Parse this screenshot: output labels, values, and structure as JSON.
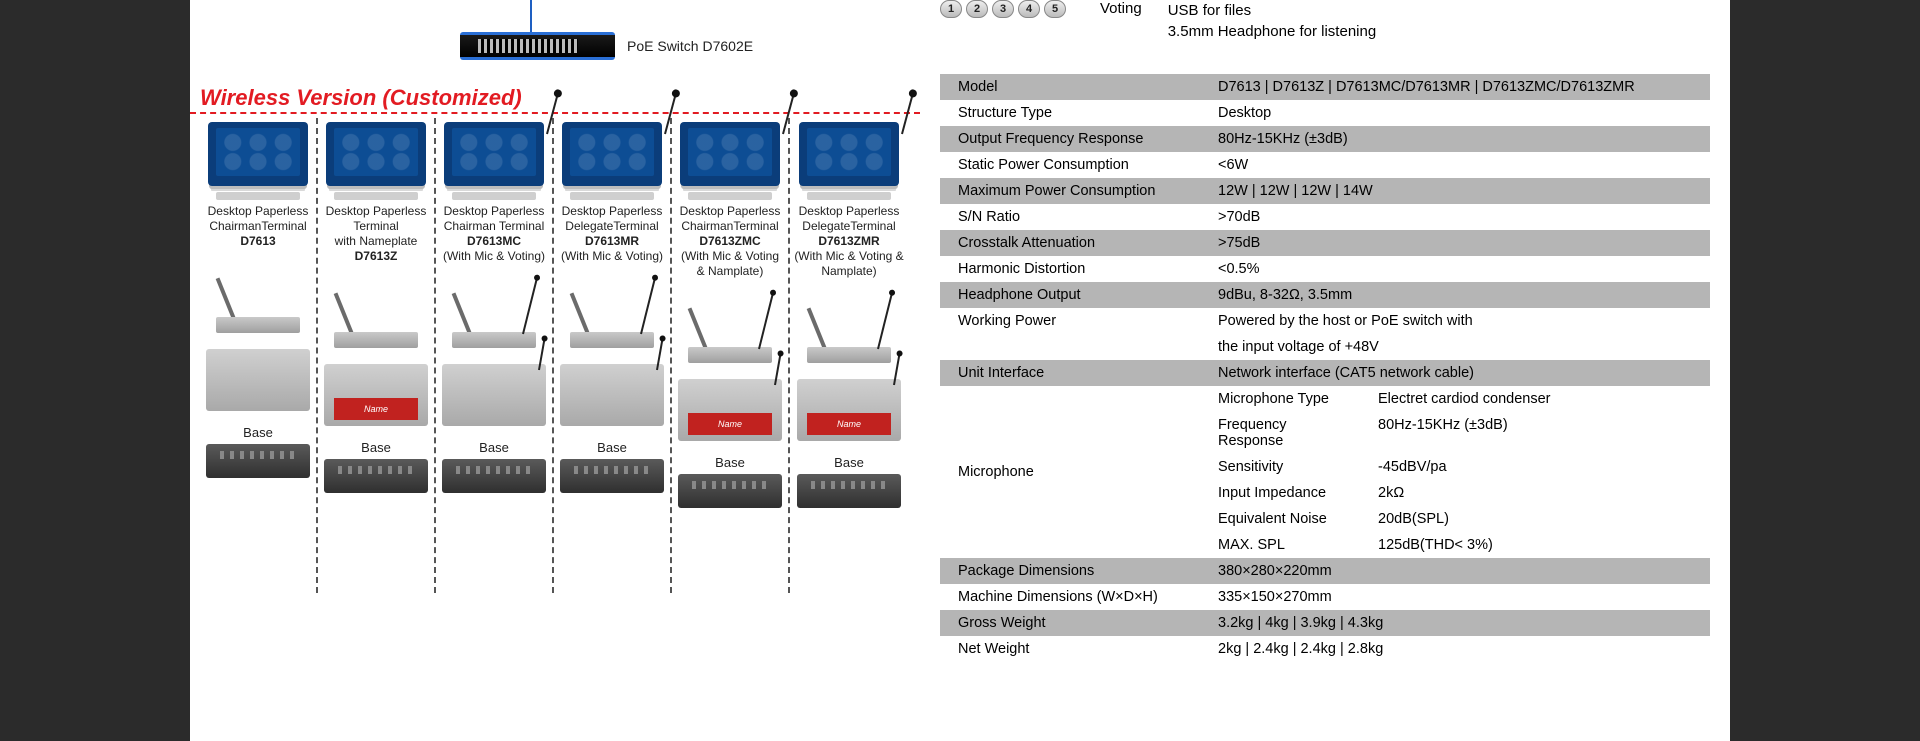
{
  "switch_label": "PoE Switch D7602E",
  "wireless_title": "Wireless Version (Customized)",
  "top_info": {
    "voting_numbers": [
      "1",
      "2",
      "3",
      "4",
      "5"
    ],
    "voting_word": "Voting",
    "usb_line1": "USB for files",
    "usb_line2": "3.5mm Headphone for listening"
  },
  "products": [
    {
      "lines": [
        "Desktop Paperless",
        "ChairmanTerminal"
      ],
      "model": "D7613",
      "note": "",
      "has_mic": false,
      "has_nameplate": false,
      "base_label": "Base"
    },
    {
      "lines": [
        "Desktop Paperless",
        "Terminal",
        "with Nameplate"
      ],
      "model": "D7613Z",
      "note": "",
      "has_mic": false,
      "has_nameplate": true,
      "base_label": "Base"
    },
    {
      "lines": [
        "Desktop Paperless",
        "Chairman Terminal"
      ],
      "model": "D7613MC",
      "note": "(With Mic & Voting)",
      "has_mic": true,
      "has_nameplate": false,
      "base_label": "Base"
    },
    {
      "lines": [
        "Desktop Paperless",
        "DelegateTerminal"
      ],
      "model": "D7613MR",
      "note": "(With Mic & Voting)",
      "has_mic": true,
      "has_nameplate": false,
      "base_label": "Base"
    },
    {
      "lines": [
        "Desktop Paperless",
        "ChairmanTerminal"
      ],
      "model": "D7613ZMC",
      "note": "(With Mic & Voting & Namplate)",
      "has_mic": true,
      "has_nameplate": true,
      "base_label": "Base"
    },
    {
      "lines": [
        "Desktop Paperless",
        "DelegateTerminal"
      ],
      "model": "D7613ZMR",
      "note": "(With Mic & Voting & Namplate)",
      "has_mic": true,
      "has_nameplate": true,
      "base_label": "Base"
    }
  ],
  "nameplate_text": "Name",
  "spec_rows": [
    {
      "shade": true,
      "k": "Model",
      "v": "D7613 | D7613Z | D7613MC/D7613MR | D7613ZMC/D7613ZMR"
    },
    {
      "shade": false,
      "k": "Structure Type",
      "v": "Desktop"
    },
    {
      "shade": true,
      "k": "Output Frequency Response",
      "v": "80Hz-15KHz (±3dB)"
    },
    {
      "shade": false,
      "k": "Static Power Consumption",
      "v": "<6W"
    },
    {
      "shade": true,
      "k": "Maximum Power Consumption",
      "v": "12W | 12W | 12W | 14W"
    },
    {
      "shade": false,
      "k": "S/N Ratio",
      "v": ">70dB"
    },
    {
      "shade": true,
      "k": "Crosstalk Attenuation",
      "v": ">75dB"
    },
    {
      "shade": false,
      "k": "Harmonic Distortion",
      "v": "<0.5%"
    },
    {
      "shade": true,
      "k": "Headphone Output",
      "v": "9dBu, 8-32Ω, 3.5mm"
    },
    {
      "shade": false,
      "k": "Working Power",
      "v": "Powered by the host or PoE switch with"
    },
    {
      "shade": false,
      "k": "",
      "v": "the input voltage of +48V"
    },
    {
      "shade": true,
      "k": "Unit Interface",
      "v": "Network interface (CAT5 network cable)"
    }
  ],
  "mic_group": {
    "label": "Microphone",
    "rows": [
      {
        "k": "Microphone Type",
        "v": "Electret cardiod condenser"
      },
      {
        "k": "Frequency Response",
        "v": "80Hz-15KHz (±3dB)"
      },
      {
        "k": "Sensitivity",
        "v": "-45dBV/pa"
      },
      {
        "k": "Input Impedance",
        "v": "2kΩ"
      },
      {
        "k": "Equivalent Noise",
        "v": "20dB(SPL)"
      },
      {
        "k": "MAX. SPL",
        "v": "125dB(THD< 3%)"
      }
    ]
  },
  "spec_rows_tail": [
    {
      "shade": true,
      "k": "Package Dimensions",
      "v": "380×280×220mm"
    },
    {
      "shade": false,
      "k": "Machine Dimensions (W×D×H)",
      "v": "335×150×270mm"
    },
    {
      "shade": true,
      "k": "Gross Weight",
      "v": "3.2kg | 4kg | 3.9kg | 4.3kg"
    },
    {
      "shade": false,
      "k": "Net Weight",
      "v": "2kg | 2.4kg | 2.4kg | 2.8kg"
    }
  ],
  "colors": {
    "accent_red": "#e21b22",
    "shade_grey": "#b5b5b5",
    "arrow_blue": "#1e5fc2"
  }
}
